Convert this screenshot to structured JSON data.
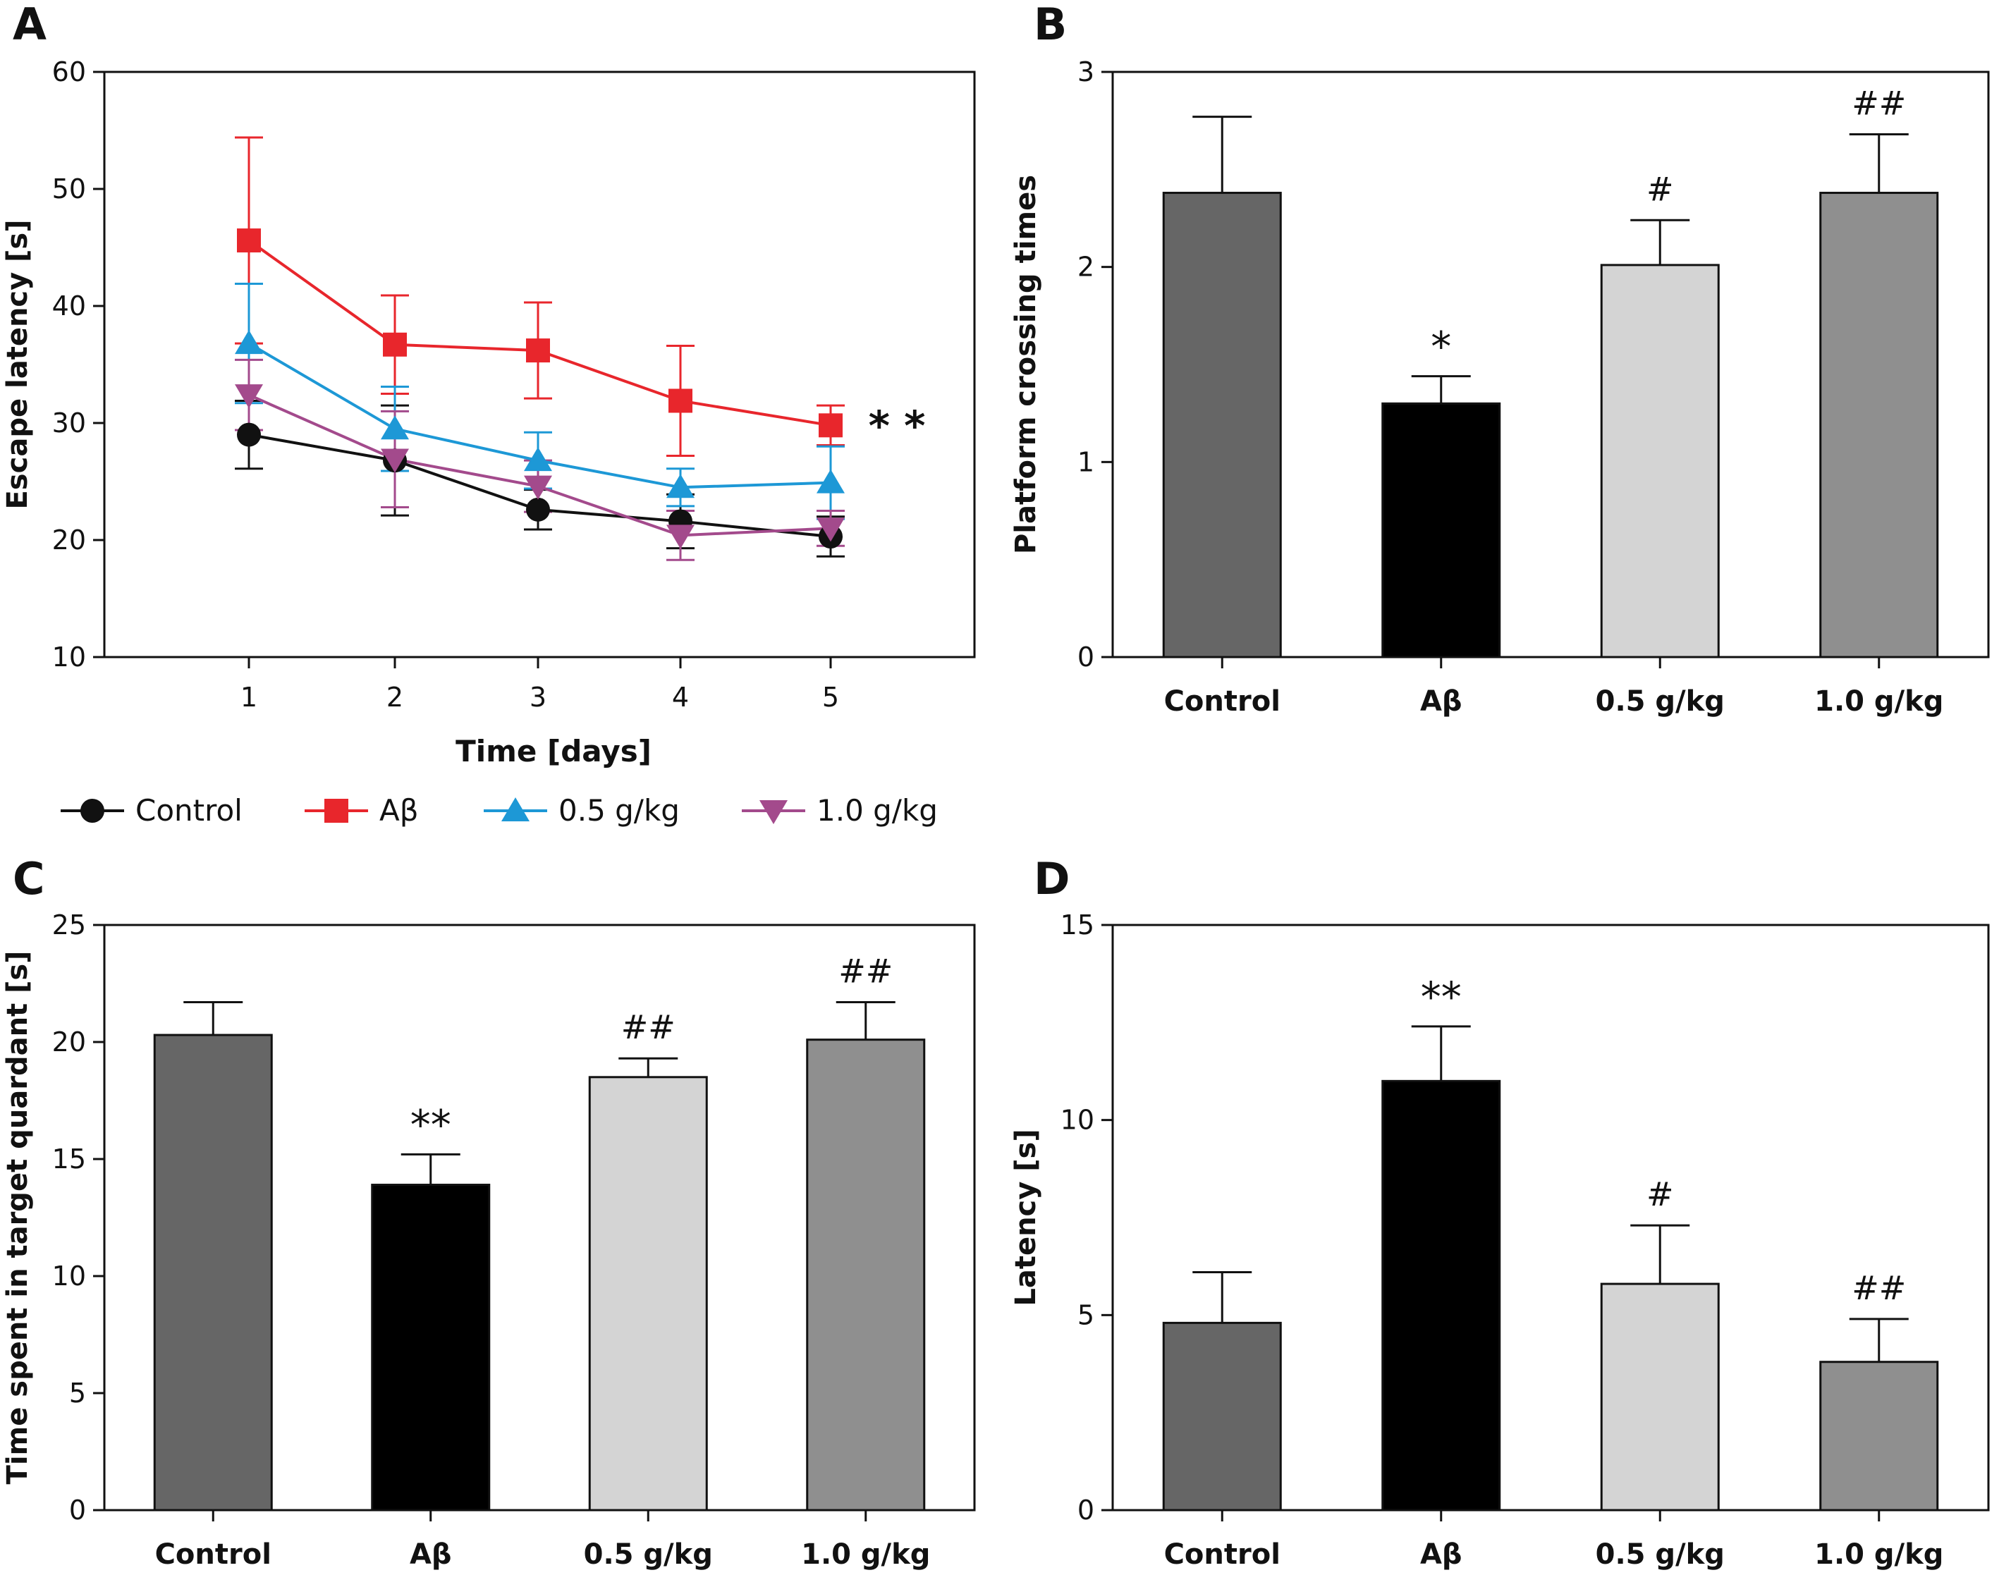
{
  "chart_data": [
    {
      "panel": "A",
      "type": "line",
      "xlabel": "Time [days]",
      "ylabel": "Escape latency [s]",
      "x": [
        1,
        2,
        3,
        4,
        5
      ],
      "xticks": [
        "1",
        "2",
        "3",
        "4",
        "5"
      ],
      "ylim": [
        10,
        60
      ],
      "yticks": [
        "10",
        "20",
        "30",
        "40",
        "50",
        "60"
      ],
      "series": [
        {
          "name": "Control",
          "marker": "circle",
          "color": "#111111",
          "values": [
            29.0,
            26.8,
            22.6,
            21.6,
            20.3
          ],
          "errors": [
            2.9,
            4.7,
            1.7,
            2.3,
            1.7
          ]
        },
        {
          "name": "Aβ",
          "marker": "square",
          "color": "#e8262c",
          "values": [
            45.6,
            36.7,
            36.2,
            31.9,
            29.8
          ],
          "errors": [
            8.8,
            4.2,
            4.1,
            4.7,
            1.7
          ]
        },
        {
          "name": "0.5 g/kg",
          "marker": "triangle-up",
          "color": "#1d98d6",
          "values": [
            36.8,
            29.5,
            26.8,
            24.5,
            24.9
          ],
          "errors": [
            5.1,
            3.6,
            2.4,
            1.6,
            3.1
          ]
        },
        {
          "name": "1.0 g/kg",
          "marker": "triangle-down",
          "color": "#a34a8c",
          "values": [
            32.4,
            26.9,
            24.6,
            20.4,
            21.0
          ],
          "errors": [
            3.0,
            4.1,
            2.2,
            2.1,
            1.5
          ]
        }
      ],
      "annotation": "* *",
      "legend_position": "below"
    },
    {
      "panel": "B",
      "type": "bar",
      "categories": [
        "Control",
        "Aβ",
        "0.5 g/kg",
        "1.0 g/kg"
      ],
      "values": [
        2.38,
        1.3,
        2.01,
        2.38
      ],
      "errors": [
        0.39,
        0.14,
        0.23,
        0.3
      ],
      "colors": [
        "#666666",
        "#000000",
        "#d4d4d4",
        "#8f8f8f"
      ],
      "annotations": [
        "",
        "*",
        "#",
        "##"
      ],
      "ylabel": "Platform crossing times",
      "ylim": [
        0,
        3
      ],
      "yticks": [
        "0",
        "1",
        "2",
        "3"
      ]
    },
    {
      "panel": "C",
      "type": "bar",
      "categories": [
        "Control",
        "Aβ",
        "0.5 g/kg",
        "1.0 g/kg"
      ],
      "values": [
        20.3,
        13.9,
        18.5,
        20.1
      ],
      "errors": [
        1.4,
        1.3,
        0.8,
        1.6
      ],
      "colors": [
        "#666666",
        "#000000",
        "#d4d4d4",
        "#8f8f8f"
      ],
      "annotations": [
        "",
        "**",
        "##",
        "##"
      ],
      "ylabel": "Time spent in target quardant [s]",
      "ylim": [
        0,
        25
      ],
      "yticks": [
        "0",
        "5",
        "10",
        "15",
        "20",
        "25"
      ]
    },
    {
      "panel": "D",
      "type": "bar",
      "categories": [
        "Control",
        "Aβ",
        "0.5 g/kg",
        "1.0 g/kg"
      ],
      "values": [
        4.8,
        11.0,
        5.8,
        3.8
      ],
      "errors": [
        1.3,
        1.4,
        1.5,
        1.1
      ],
      "colors": [
        "#666666",
        "#000000",
        "#d4d4d4",
        "#8f8f8f"
      ],
      "annotations": [
        "",
        "**",
        "#",
        "##"
      ],
      "ylabel": "Latency [s]",
      "ylim": [
        0,
        15
      ],
      "yticks": [
        "0",
        "5",
        "10",
        "15"
      ]
    }
  ]
}
